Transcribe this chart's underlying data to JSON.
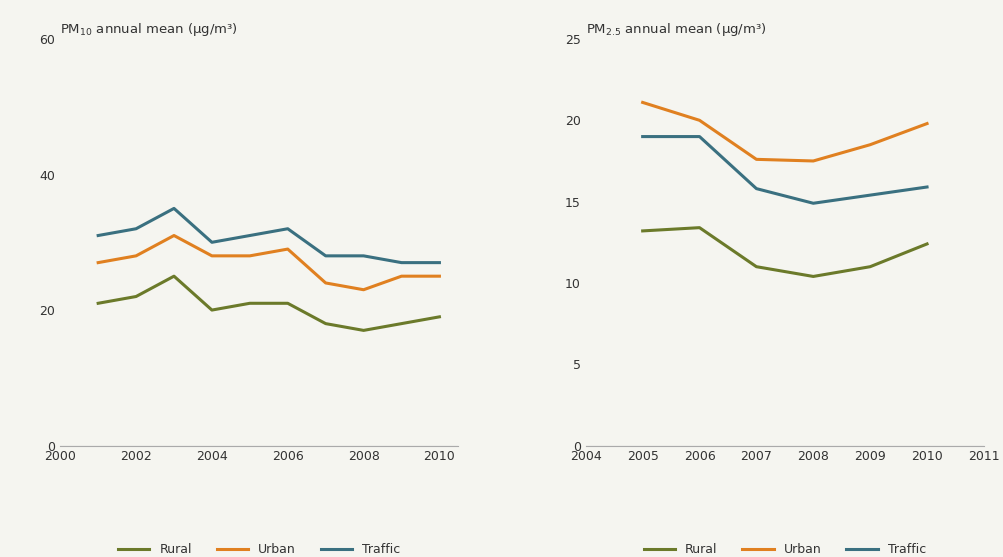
{
  "pm10": {
    "title": "PM$_{10}$ annual mean (μg/m³)",
    "years": [
      2001,
      2002,
      2003,
      2004,
      2005,
      2006,
      2007,
      2008,
      2009,
      2010
    ],
    "rural": [
      21,
      22,
      25,
      20,
      21,
      21,
      18,
      17,
      18,
      19
    ],
    "urban": [
      27,
      28,
      31,
      28,
      28,
      29,
      24,
      23,
      25,
      25
    ],
    "traffic": [
      31,
      32,
      35,
      30,
      31,
      32,
      28,
      28,
      27,
      27
    ],
    "xlim": [
      2000,
      2010.5
    ],
    "ylim": [
      0,
      60
    ],
    "yticks": [
      0,
      20,
      40,
      60
    ],
    "xticks": [
      2000,
      2002,
      2004,
      2006,
      2008,
      2010
    ]
  },
  "pm25": {
    "title": "PM$_{2.5}$ annual mean (μg/m³)",
    "years": [
      2005,
      2006,
      2007,
      2008,
      2009,
      2010
    ],
    "rural": [
      13.2,
      13.4,
      11.0,
      10.4,
      11.0,
      12.4
    ],
    "urban": [
      21.1,
      20.0,
      17.6,
      17.5,
      18.5,
      19.8
    ],
    "traffic": [
      19.0,
      19.0,
      15.8,
      14.9,
      15.4,
      15.9
    ],
    "xlim": [
      2004,
      2011
    ],
    "ylim": [
      0,
      25
    ],
    "yticks": [
      0,
      5,
      10,
      15,
      20,
      25
    ],
    "xticks": [
      2004,
      2005,
      2006,
      2007,
      2008,
      2009,
      2010,
      2011
    ]
  },
  "colors": {
    "rural": "#6b7a2a",
    "urban": "#e08020",
    "traffic": "#3a7080"
  },
  "line_width": 2.2,
  "background_color": "#f5f5f0",
  "legend_labels": [
    "Rural",
    "Urban",
    "Traffic"
  ]
}
